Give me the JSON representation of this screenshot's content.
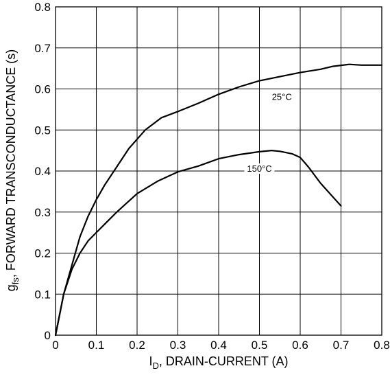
{
  "chart_data": {
    "type": "line",
    "xlabel": {
      "main": "I",
      "sub": "D",
      "rest": ", DRAIN-CURRENT (A)"
    },
    "ylabel": {
      "main": "g",
      "sub": "fs",
      "rest": ", FORWARD TRANSCONDUCTANCE (s)"
    },
    "xlim": [
      0,
      0.8
    ],
    "ylim": [
      0,
      0.8
    ],
    "grid": true,
    "x_ticks": [
      "0",
      "0.1",
      "0.2",
      "0.3",
      "0.4",
      "0.5",
      "0.6",
      "0.7",
      "0.8"
    ],
    "y_ticks": [
      "0",
      "0.1",
      "0.2",
      "0.3",
      "0.4",
      "0.5",
      "0.6",
      "0.7",
      "0.8"
    ],
    "series": [
      {
        "name": "25°C",
        "x": [
          0,
          0.01,
          0.02,
          0.04,
          0.06,
          0.08,
          0.1,
          0.12,
          0.15,
          0.18,
          0.22,
          0.26,
          0.3,
          0.35,
          0.4,
          0.45,
          0.5,
          0.55,
          0.6,
          0.65,
          0.68,
          0.72,
          0.75,
          0.8
        ],
        "y": [
          0,
          0.05,
          0.1,
          0.17,
          0.24,
          0.29,
          0.33,
          0.365,
          0.41,
          0.455,
          0.5,
          0.53,
          0.545,
          0.565,
          0.587,
          0.605,
          0.62,
          0.63,
          0.64,
          0.648,
          0.655,
          0.66,
          0.658,
          0.658
        ]
      },
      {
        "name": "150°C",
        "x": [
          0,
          0.01,
          0.02,
          0.04,
          0.06,
          0.08,
          0.1,
          0.12,
          0.15,
          0.2,
          0.25,
          0.3,
          0.35,
          0.4,
          0.45,
          0.5,
          0.53,
          0.55,
          0.58,
          0.6,
          0.62,
          0.65,
          0.7
        ],
        "y": [
          0,
          0.05,
          0.1,
          0.16,
          0.2,
          0.23,
          0.25,
          0.27,
          0.3,
          0.345,
          0.375,
          0.398,
          0.412,
          0.43,
          0.44,
          0.447,
          0.45,
          0.448,
          0.442,
          0.433,
          0.41,
          0.37,
          0.315
        ]
      }
    ],
    "annotations": [
      {
        "text": "25°C",
        "series": "25°C"
      },
      {
        "text": "150°C",
        "series": "150°C"
      }
    ]
  }
}
